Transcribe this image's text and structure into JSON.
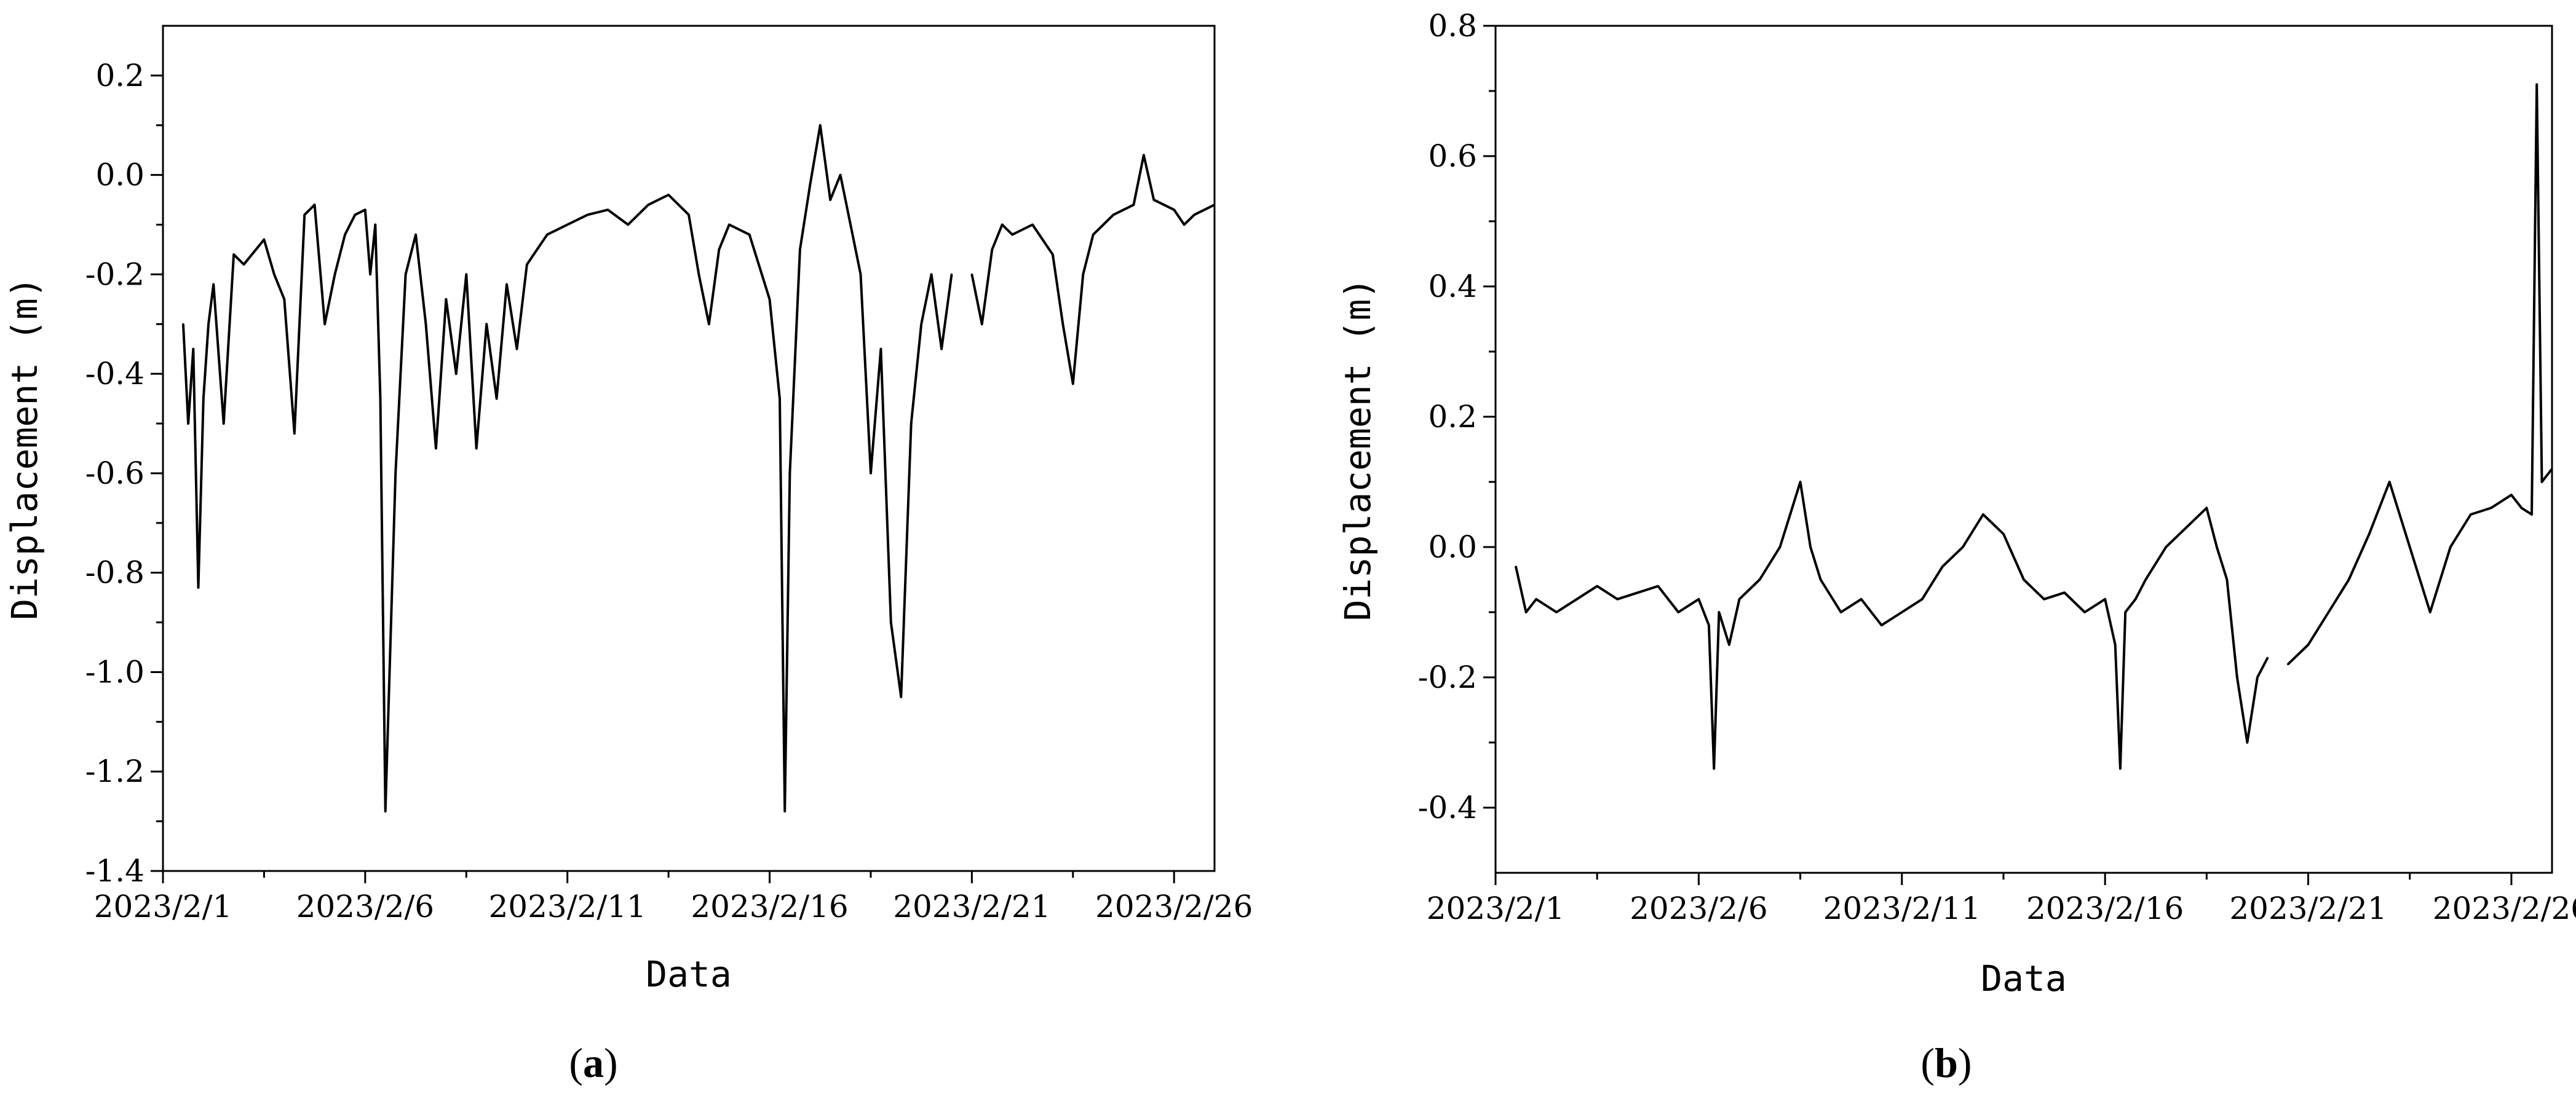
{
  "panels": [
    {
      "label_open": "(",
      "label_letter": "a",
      "label_close": ")"
    },
    {
      "label_open": "(",
      "label_letter": "b",
      "label_close": ")"
    }
  ],
  "chart_data": [
    {
      "type": "line",
      "xlabel": "Data",
      "ylabel": "Displacement (m)",
      "x_ticks": [
        "2023/2/1",
        "2023/2/6",
        "2023/2/11",
        "2023/2/16",
        "2023/2/21",
        "2023/2/26"
      ],
      "y_ticks": [
        "0.2",
        "0.0",
        "-0.2",
        "-0.4",
        "-0.6",
        "-0.8",
        "-1.0",
        "-1.2",
        "-1.4"
      ],
      "xlim": [
        "2023-02-01",
        "2023-02-27"
      ],
      "ylim": [
        -1.4,
        0.3
      ],
      "grid": false,
      "series": [
        {
          "color": "#000000",
          "x": [
            "2023-02-01 12:00",
            "2023-02-01 15:00",
            "2023-02-01 18:00",
            "2023-02-01 21:00",
            "2023-02-02 00:00",
            "2023-02-02 03:00",
            "2023-02-02 06:00",
            "2023-02-02 12:00",
            "2023-02-02 18:00",
            "2023-02-03 00:00",
            "2023-02-03 12:00",
            "2023-02-03 18:00",
            "2023-02-04 00:00",
            "2023-02-04 06:00",
            "2023-02-04 12:00",
            "2023-02-04 18:00",
            "2023-02-05 00:00",
            "2023-02-05 06:00",
            "2023-02-05 12:00",
            "2023-02-05 18:00",
            "2023-02-06 00:00",
            "2023-02-06 03:00",
            "2023-02-06 06:00",
            "2023-02-06 09:00",
            "2023-02-06 12:00",
            "2023-02-06 18:00",
            "2023-02-07 00:00",
            "2023-02-07 06:00",
            "2023-02-07 12:00",
            "2023-02-07 18:00",
            "2023-02-08 00:00",
            "2023-02-08 06:00",
            "2023-02-08 12:00",
            "2023-02-08 18:00",
            "2023-02-09 00:00",
            "2023-02-09 06:00",
            "2023-02-09 12:00",
            "2023-02-09 18:00",
            "2023-02-10 00:00",
            "2023-02-10 12:00",
            "2023-02-11 00:00",
            "2023-02-11 12:00",
            "2023-02-12 00:00",
            "2023-02-12 12:00",
            "2023-02-13 00:00",
            "2023-02-13 12:00",
            "2023-02-14 00:00",
            "2023-02-14 06:00",
            "2023-02-14 12:00",
            "2023-02-14 18:00",
            "2023-02-15 00:00",
            "2023-02-15 12:00",
            "2023-02-16 00:00",
            "2023-02-16 06:00",
            "2023-02-16 09:00",
            "2023-02-16 12:00",
            "2023-02-16 18:00",
            "2023-02-17 00:00",
            "2023-02-17 06:00",
            "2023-02-17 12:00",
            "2023-02-17 18:00",
            "2023-02-18 00:00",
            "2023-02-18 06:00",
            "2023-02-18 12:00",
            "2023-02-18 18:00",
            "2023-02-19 00:00",
            "2023-02-19 06:00",
            "2023-02-19 12:00",
            "2023-02-19 18:00",
            "2023-02-20 00:00",
            "2023-02-20 06:00",
            "2023-02-20 12:00",
            null,
            "2023-02-21 00:00",
            "2023-02-21 06:00",
            "2023-02-21 12:00",
            "2023-02-21 18:00",
            "2023-02-22 00:00",
            "2023-02-22 12:00",
            "2023-02-23 00:00",
            "2023-02-23 06:00",
            "2023-02-23 12:00",
            "2023-02-23 18:00",
            "2023-02-24 00:00",
            "2023-02-24 12:00",
            "2023-02-25 00:00",
            "2023-02-25 06:00",
            "2023-02-25 12:00",
            "2023-02-26 00:00",
            "2023-02-26 06:00",
            "2023-02-26 12:00",
            "2023-02-27 00:00"
          ],
          "y": [
            -0.3,
            -0.5,
            -0.35,
            -0.83,
            -0.45,
            -0.3,
            -0.22,
            -0.5,
            -0.16,
            -0.18,
            -0.13,
            -0.2,
            -0.25,
            -0.52,
            -0.08,
            -0.06,
            -0.3,
            -0.2,
            -0.12,
            -0.08,
            -0.07,
            -0.2,
            -0.1,
            -0.45,
            -1.28,
            -0.6,
            -0.2,
            -0.12,
            -0.3,
            -0.55,
            -0.25,
            -0.4,
            -0.2,
            -0.55,
            -0.3,
            -0.45,
            -0.22,
            -0.35,
            -0.18,
            -0.12,
            -0.1,
            -0.08,
            -0.07,
            -0.1,
            -0.06,
            -0.04,
            -0.08,
            -0.2,
            -0.3,
            -0.15,
            -0.1,
            -0.12,
            -0.25,
            -0.45,
            -1.28,
            -0.6,
            -0.15,
            -0.02,
            0.1,
            -0.05,
            0.0,
            -0.1,
            -0.2,
            -0.6,
            -0.35,
            -0.9,
            -1.05,
            -0.5,
            -0.3,
            -0.2,
            -0.35,
            -0.2,
            null,
            -0.2,
            -0.3,
            -0.15,
            -0.1,
            -0.12,
            -0.1,
            -0.16,
            -0.3,
            -0.42,
            -0.2,
            -0.12,
            -0.08,
            -0.06,
            0.04,
            -0.05,
            -0.07,
            -0.1,
            -0.08,
            -0.06
          ]
        }
      ]
    },
    {
      "type": "line",
      "xlabel": "Data",
      "ylabel": "Displacement (m)",
      "x_ticks": [
        "2023/2/1",
        "2023/2/6",
        "2023/2/11",
        "2023/2/16",
        "2023/2/21",
        "2023/2/26"
      ],
      "y_ticks": [
        "0.8",
        "0.6",
        "0.4",
        "0.2",
        "0.0",
        "-0.2",
        "-0.4"
      ],
      "xlim": [
        "2023-02-01",
        "2023-02-27"
      ],
      "ylim": [
        -0.5,
        0.8
      ],
      "grid": false,
      "series": [
        {
          "color": "#000000",
          "x": [
            "2023-02-01 12:00",
            "2023-02-01 18:00",
            "2023-02-02 00:00",
            "2023-02-02 12:00",
            "2023-02-03 00:00",
            "2023-02-03 12:00",
            "2023-02-04 00:00",
            "2023-02-04 12:00",
            "2023-02-05 00:00",
            "2023-02-05 12:00",
            "2023-02-06 00:00",
            "2023-02-06 06:00",
            "2023-02-06 09:00",
            "2023-02-06 12:00",
            "2023-02-06 18:00",
            "2023-02-07 00:00",
            "2023-02-07 12:00",
            "2023-02-08 00:00",
            "2023-02-08 06:00",
            "2023-02-08 12:00",
            "2023-02-08 18:00",
            "2023-02-09 00:00",
            "2023-02-09 12:00",
            "2023-02-10 00:00",
            "2023-02-10 12:00",
            "2023-02-11 00:00",
            "2023-02-11 12:00",
            "2023-02-12 00:00",
            "2023-02-12 12:00",
            "2023-02-13 00:00",
            "2023-02-13 12:00",
            "2023-02-14 00:00",
            "2023-02-14 12:00",
            "2023-02-15 00:00",
            "2023-02-15 12:00",
            "2023-02-16 00:00",
            "2023-02-16 06:00",
            "2023-02-16 09:00",
            "2023-02-16 12:00",
            "2023-02-16 18:00",
            "2023-02-17 00:00",
            "2023-02-17 12:00",
            "2023-02-18 00:00",
            "2023-02-18 12:00",
            "2023-02-18 18:00",
            "2023-02-19 00:00",
            "2023-02-19 06:00",
            "2023-02-19 12:00",
            "2023-02-19 18:00",
            "2023-02-20 00:00",
            null,
            "2023-02-20 12:00",
            "2023-02-21 00:00",
            "2023-02-21 12:00",
            "2023-02-22 00:00",
            "2023-02-22 12:00",
            "2023-02-23 00:00",
            "2023-02-23 12:00",
            "2023-02-24 00:00",
            "2023-02-24 12:00",
            "2023-02-25 00:00",
            "2023-02-25 12:00",
            "2023-02-26 00:00",
            "2023-02-26 06:00",
            "2023-02-26 12:00",
            "2023-02-26 15:00",
            "2023-02-26 18:00",
            "2023-02-27 00:00"
          ],
          "y": [
            -0.03,
            -0.1,
            -0.08,
            -0.1,
            -0.08,
            -0.06,
            -0.08,
            -0.07,
            -0.06,
            -0.1,
            -0.08,
            -0.12,
            -0.34,
            -0.1,
            -0.15,
            -0.08,
            -0.05,
            0.0,
            0.05,
            0.1,
            0.0,
            -0.05,
            -0.1,
            -0.08,
            -0.12,
            -0.1,
            -0.08,
            -0.03,
            0.0,
            0.05,
            0.02,
            -0.05,
            -0.08,
            -0.07,
            -0.1,
            -0.08,
            -0.15,
            -0.34,
            -0.1,
            -0.08,
            -0.05,
            0.0,
            0.03,
            0.06,
            0.0,
            -0.05,
            -0.2,
            -0.3,
            -0.2,
            -0.17,
            null,
            -0.18,
            -0.15,
            -0.1,
            -0.05,
            0.02,
            0.1,
            0.0,
            -0.1,
            0.0,
            0.05,
            0.06,
            0.08,
            0.06,
            0.05,
            0.71,
            0.1,
            0.12
          ]
        }
      ]
    }
  ]
}
